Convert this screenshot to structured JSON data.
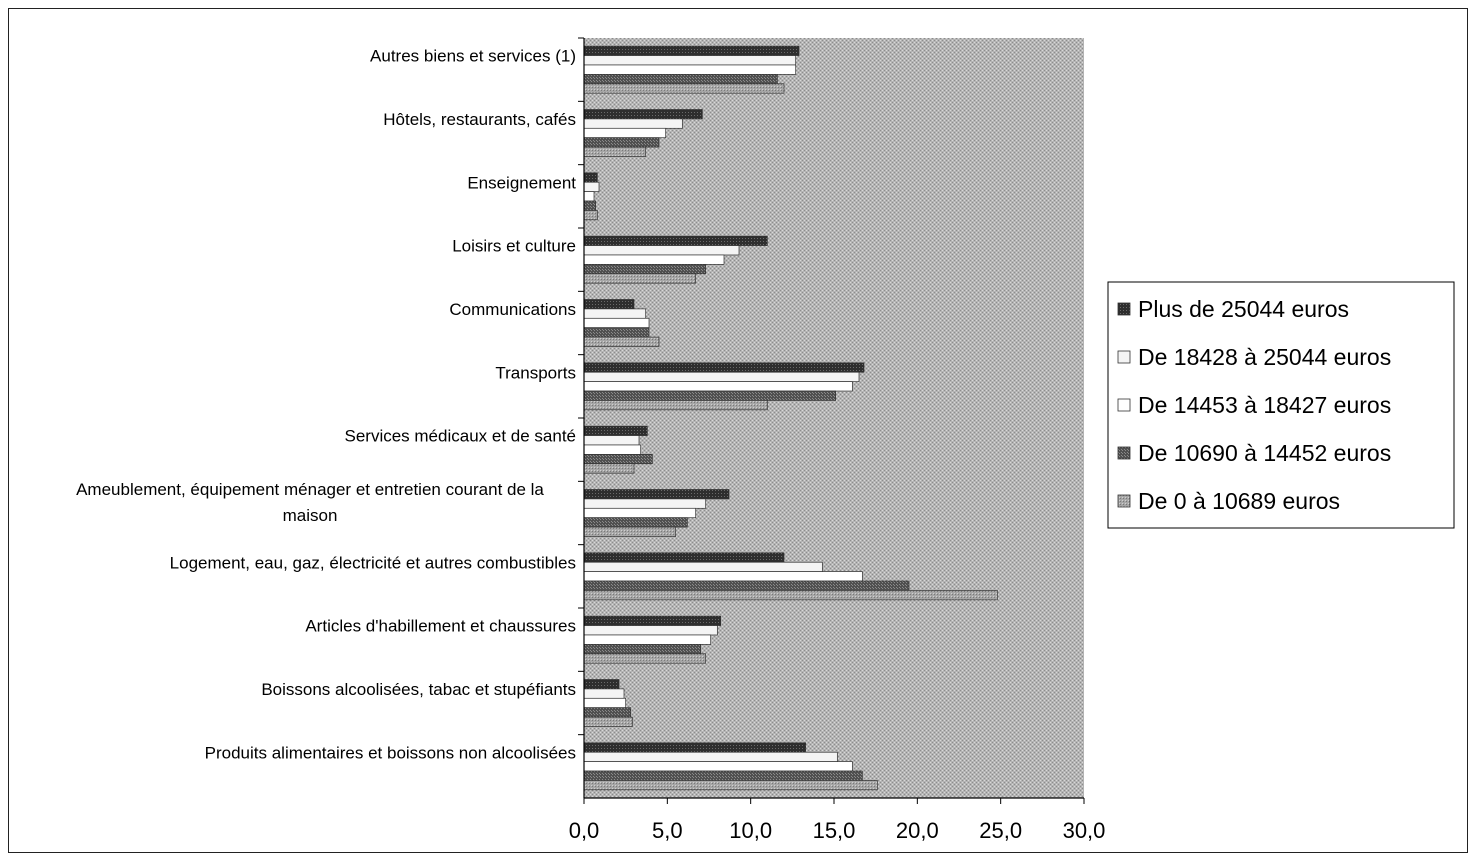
{
  "chart_data": {
    "type": "bar",
    "orientation": "horizontal",
    "title": "",
    "xlabel": "",
    "ylabel": "",
    "xlim": [
      0,
      30
    ],
    "x_ticks": [
      "0,0",
      "5,0",
      "10,0",
      "15,0",
      "20,0",
      "25,0",
      "30,0"
    ],
    "grid": false,
    "legend_position": "right",
    "categories": [
      "Autres biens et services (1)",
      "Hôtels, restaurants, cafés",
      "Enseignement",
      "Loisirs et culture",
      "Communications",
      "Transports",
      "Services médicaux et de santé",
      "Ameublement, équipement ménager et entretien courant de la maison",
      "Logement, eau, gaz, électricité et autres combustibles",
      "Articles d'habillement et chaussures",
      "Boissons alcoolisées, tabac et stupéfiants",
      "Produits alimentaires et boissons non alcoolisées"
    ],
    "series": [
      {
        "name": "Plus de 25044 euros",
        "color": "#3a3a3a",
        "values": [
          12.9,
          7.1,
          0.8,
          11.0,
          3.0,
          16.8,
          3.8,
          8.7,
          12.0,
          8.2,
          2.1,
          13.3
        ]
      },
      {
        "name": "De 18428 à 25044 euros",
        "color": "#f4f4f4",
        "values": [
          12.7,
          5.9,
          0.9,
          9.3,
          3.7,
          16.5,
          3.3,
          7.3,
          14.3,
          8.0,
          2.4,
          15.2
        ]
      },
      {
        "name": "De 14453 à 18427 euros",
        "color": "#ffffff",
        "values": [
          12.7,
          4.9,
          0.6,
          8.4,
          3.9,
          16.1,
          3.4,
          6.7,
          16.7,
          7.6,
          2.5,
          16.1
        ]
      },
      {
        "name": "De 10690 à 14452 euros",
        "color": "#5c5c5c",
        "values": [
          11.6,
          4.5,
          0.7,
          7.3,
          3.9,
          15.1,
          4.1,
          6.2,
          19.5,
          7.0,
          2.8,
          16.7
        ]
      },
      {
        "name": "De 0 à 10689 euros",
        "color": "#9a9a9a",
        "values": [
          12.0,
          3.7,
          0.8,
          6.7,
          4.5,
          11.0,
          3.0,
          5.5,
          24.8,
          7.3,
          2.9,
          17.6
        ]
      }
    ]
  }
}
